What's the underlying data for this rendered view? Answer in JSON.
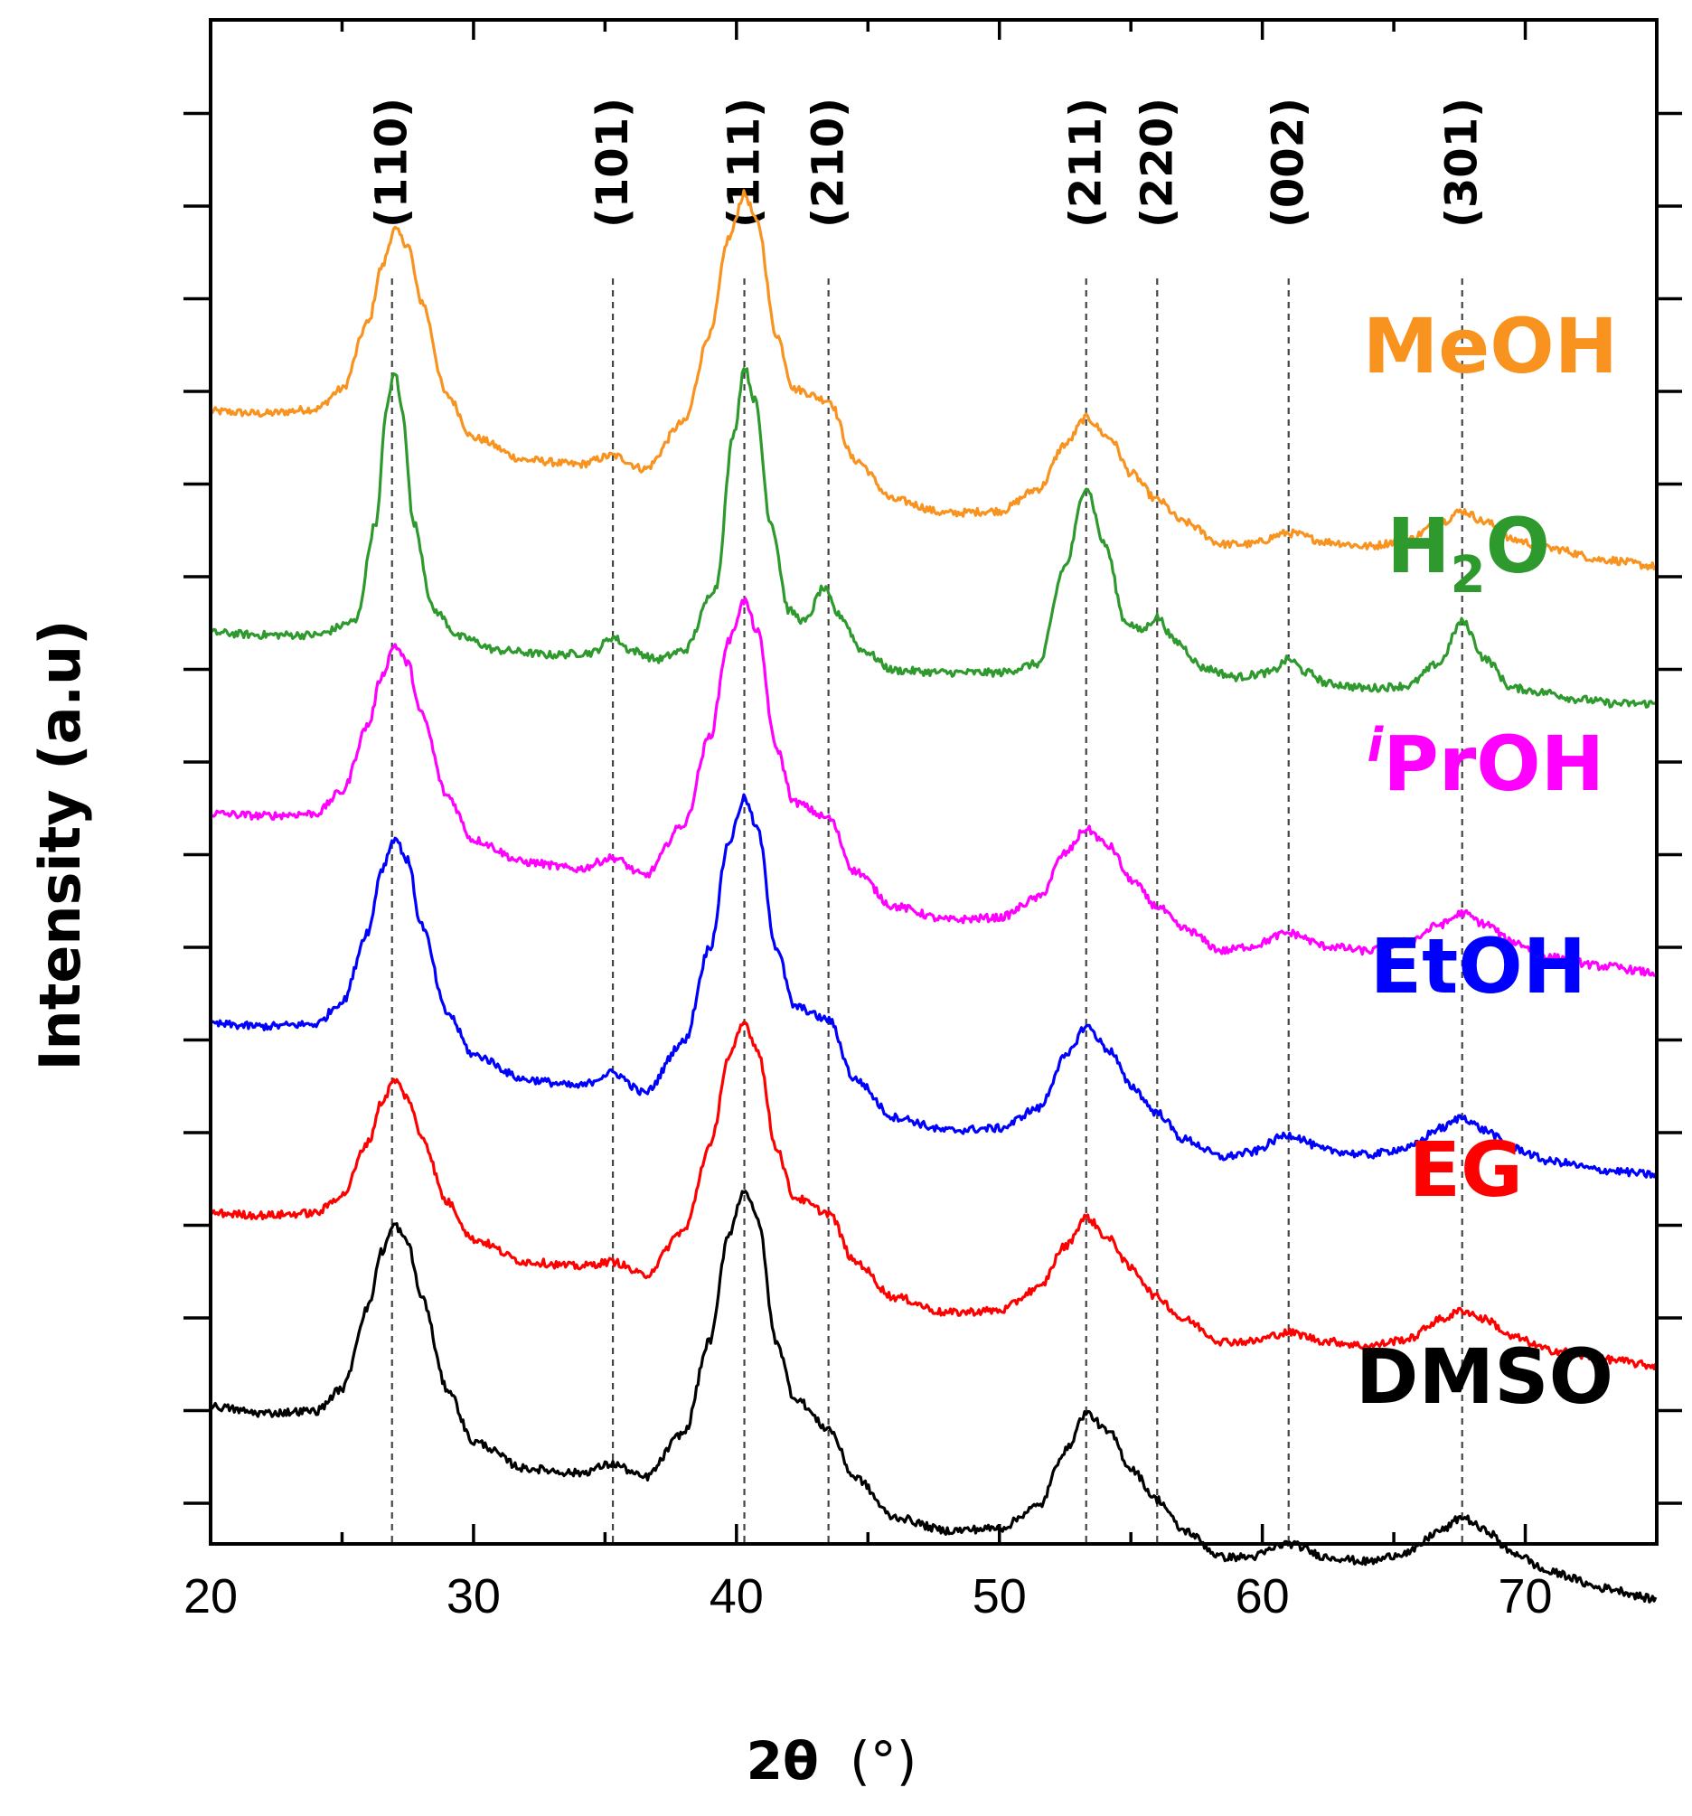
{
  "chart_data": {
    "type": "line",
    "title": "",
    "xlabel": "2θ (°)",
    "xlabel_main": "2θ",
    "xlabel_unit": "(°)",
    "ylabel": "Intensity (a.u)",
    "xlim": [
      20,
      75
    ],
    "xticks": [
      20,
      30,
      40,
      50,
      60,
      70
    ],
    "grid": false,
    "y_tick_labels": false,
    "reference_lines": [
      {
        "label": "(110)",
        "x": 26.9
      },
      {
        "label": "(101)",
        "x": 35.3
      },
      {
        "label": "(111)",
        "x": 40.3
      },
      {
        "label": "(210)",
        "x": 43.5
      },
      {
        "label": "(211)",
        "x": 53.3
      },
      {
        "label": "(220)",
        "x": 56.0
      },
      {
        "label": "(002)",
        "x": 61.0
      },
      {
        "label": "(301)",
        "x": 67.6
      }
    ],
    "series": [
      {
        "name": "MeOH",
        "color": "#f7931e",
        "x": [
          20,
          22,
          24,
          25,
          26,
          26.5,
          27,
          27.5,
          28,
          29,
          30,
          32,
          34,
          35.3,
          36.5,
          38,
          39,
          39.7,
          40.3,
          40.8,
          41.5,
          42.2,
          43.5,
          44.5,
          46,
          48,
          50,
          51.5,
          52.5,
          53.3,
          54.2,
          55,
          56,
          57,
          58.5,
          59.5,
          61,
          62.5,
          64,
          65.5,
          66.8,
          67.6,
          68.5,
          69.5,
          71,
          73,
          75
        ],
        "values": [
          1.0,
          0.99,
          1.01,
          1.1,
          1.4,
          1.65,
          1.82,
          1.75,
          1.5,
          1.07,
          0.88,
          0.78,
          0.76,
          0.8,
          0.74,
          0.95,
          1.35,
          1.78,
          1.98,
          1.85,
          1.35,
          1.1,
          1.05,
          0.78,
          0.6,
          0.54,
          0.55,
          0.65,
          0.85,
          0.97,
          0.88,
          0.72,
          0.6,
          0.5,
          0.4,
          0.4,
          0.45,
          0.41,
          0.39,
          0.42,
          0.5,
          0.55,
          0.5,
          0.42,
          0.38,
          0.33,
          0.3
        ]
      },
      {
        "name": "H2O",
        "name_main": "H",
        "name_sub": "2",
        "name_tail": "O",
        "color": "#2e9a2e",
        "x": [
          20,
          22,
          24,
          25.5,
          26.3,
          26.7,
          27,
          27.3,
          27.7,
          28.5,
          29.5,
          31,
          33,
          34.5,
          35.3,
          36,
          37,
          38,
          39.2,
          39.9,
          40.3,
          40.7,
          41.3,
          42,
          42.6,
          43.3,
          43.9,
          44.8,
          46,
          48,
          50,
          51.5,
          52.5,
          53.3,
          54,
          54.8,
          55.4,
          56,
          56.7,
          57.8,
          59,
          60.3,
          61,
          61.7,
          62.5,
          64,
          65.5,
          66.7,
          67.6,
          68.5,
          69.5,
          70.8,
          72,
          73.5,
          75
        ],
        "values": [
          1.0,
          0.99,
          0.99,
          1.05,
          1.5,
          2.02,
          2.18,
          2.0,
          1.5,
          1.1,
          0.98,
          0.92,
          0.9,
          0.91,
          0.98,
          0.92,
          0.88,
          0.92,
          1.2,
          1.9,
          2.2,
          2.05,
          1.5,
          1.1,
          1.05,
          1.2,
          1.08,
          0.92,
          0.83,
          0.82,
          0.82,
          0.86,
          1.3,
          1.66,
          1.4,
          1.05,
          1.01,
          1.07,
          0.96,
          0.84,
          0.8,
          0.82,
          0.88,
          0.82,
          0.77,
          0.75,
          0.76,
          0.86,
          1.05,
          0.88,
          0.75,
          0.73,
          0.7,
          0.68,
          0.68
        ]
      },
      {
        "name": "iPrOH",
        "name_sup": "i",
        "name_main": "PrOH",
        "color": "#ff00ff",
        "x": [
          20,
          22,
          24,
          25,
          26,
          26.5,
          27,
          27.5,
          28,
          29,
          30,
          32,
          34,
          35.3,
          36.5,
          38,
          39,
          39.7,
          40.3,
          40.8,
          41.5,
          42.2,
          43.5,
          44.5,
          46,
          48,
          50,
          51.5,
          52.5,
          53.3,
          54.2,
          55,
          56,
          57,
          58.5,
          59.5,
          61,
          62.5,
          64,
          65.5,
          66.8,
          67.6,
          68.5,
          69.5,
          71,
          73,
          75
        ],
        "values": [
          1.0,
          0.99,
          1.0,
          1.1,
          1.4,
          1.62,
          1.76,
          1.68,
          1.45,
          1.08,
          0.88,
          0.78,
          0.75,
          0.8,
          0.72,
          0.95,
          1.35,
          1.78,
          1.96,
          1.82,
          1.3,
          1.05,
          0.98,
          0.74,
          0.58,
          0.52,
          0.53,
          0.62,
          0.82,
          0.93,
          0.85,
          0.7,
          0.58,
          0.48,
          0.38,
          0.4,
          0.46,
          0.4,
          0.38,
          0.42,
          0.5,
          0.55,
          0.5,
          0.42,
          0.35,
          0.31,
          0.28
        ]
      },
      {
        "name": "EtOH",
        "color": "#0000ff",
        "x": [
          20,
          22,
          24,
          25,
          26,
          26.5,
          27,
          27.5,
          28,
          29,
          30,
          32,
          34,
          35.3,
          36.5,
          38,
          39,
          39.7,
          40.3,
          40.8,
          41.5,
          42.2,
          43.5,
          44.5,
          46,
          48,
          50,
          51.5,
          52.5,
          53.3,
          54.2,
          55,
          56,
          57,
          58.5,
          59.5,
          61,
          62.5,
          64,
          65.5,
          66.8,
          67.6,
          68.5,
          69.5,
          71,
          73,
          75
        ],
        "values": [
          1.0,
          0.99,
          1.0,
          1.1,
          1.42,
          1.7,
          1.84,
          1.74,
          1.45,
          1.05,
          0.86,
          0.75,
          0.72,
          0.78,
          0.69,
          0.92,
          1.35,
          1.82,
          2.02,
          1.88,
          1.35,
          1.08,
          1.02,
          0.75,
          0.58,
          0.52,
          0.53,
          0.62,
          0.85,
          0.99,
          0.88,
          0.72,
          0.6,
          0.48,
          0.4,
          0.42,
          0.5,
          0.43,
          0.41,
          0.44,
          0.53,
          0.58,
          0.52,
          0.44,
          0.38,
          0.34,
          0.32
        ]
      },
      {
        "name": "EG",
        "color": "#ff0000",
        "x": [
          20,
          22,
          24,
          25,
          26,
          26.5,
          27,
          27.5,
          28,
          29,
          30,
          32,
          34,
          35.3,
          36.5,
          38,
          39,
          39.7,
          40.3,
          40.8,
          41.5,
          42.2,
          43.5,
          44.5,
          46,
          48,
          50,
          51.5,
          52.5,
          53.3,
          54.2,
          55,
          56,
          57,
          58.5,
          59.5,
          61,
          62.5,
          64,
          65.5,
          66.8,
          67.6,
          68.5,
          69.5,
          71,
          73,
          75
        ],
        "values": [
          1.0,
          0.99,
          1.0,
          1.08,
          1.32,
          1.5,
          1.6,
          1.52,
          1.35,
          1.05,
          0.88,
          0.78,
          0.76,
          0.78,
          0.72,
          0.92,
          1.3,
          1.7,
          1.86,
          1.74,
          1.3,
          1.07,
          1.0,
          0.78,
          0.62,
          0.55,
          0.56,
          0.66,
          0.85,
          0.98,
          0.88,
          0.75,
          0.62,
          0.52,
          0.42,
          0.42,
          0.46,
          0.42,
          0.4,
          0.43,
          0.52,
          0.56,
          0.52,
          0.44,
          0.38,
          0.34,
          0.31
        ]
      },
      {
        "name": "DMSO",
        "color": "#000000",
        "x": [
          20,
          22,
          24,
          25,
          26,
          26.5,
          27,
          27.5,
          28,
          29,
          30,
          32,
          34,
          35.3,
          36.5,
          38,
          39,
          39.7,
          40.3,
          40.8,
          41.5,
          42.2,
          43.5,
          44.5,
          46,
          48,
          50,
          51.5,
          52.5,
          53.3,
          54.2,
          55,
          56,
          57,
          58.5,
          59.5,
          61,
          62.5,
          64,
          65.5,
          66.8,
          67.6,
          68.5,
          69.5,
          71,
          73,
          75
        ],
        "values": [
          1.0,
          0.97,
          0.98,
          1.08,
          1.45,
          1.7,
          1.82,
          1.74,
          1.5,
          1.08,
          0.84,
          0.72,
          0.7,
          0.74,
          0.68,
          0.88,
          1.3,
          1.78,
          1.98,
          1.85,
          1.3,
          1.04,
          0.9,
          0.68,
          0.5,
          0.44,
          0.45,
          0.55,
          0.8,
          0.97,
          0.88,
          0.72,
          0.58,
          0.44,
          0.32,
          0.32,
          0.38,
          0.32,
          0.3,
          0.34,
          0.44,
          0.5,
          0.44,
          0.34,
          0.25,
          0.18,
          0.13
        ]
      }
    ]
  }
}
